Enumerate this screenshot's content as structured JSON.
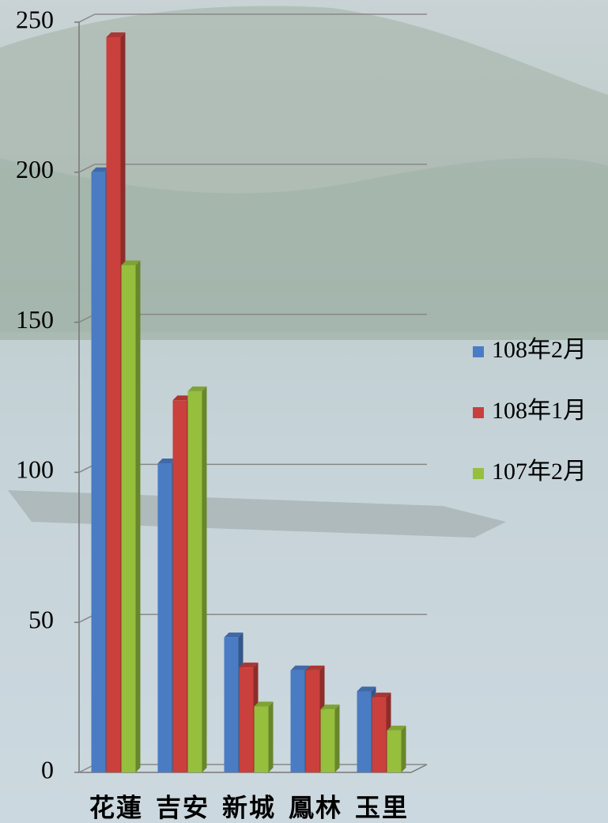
{
  "chart_data": {
    "type": "bar3d",
    "categories": [
      "花蓮",
      "吉安",
      "新城",
      "鳳林",
      "玉里"
    ],
    "series": [
      {
        "name": "108年2月",
        "color": "#4a7cc4",
        "values": [
          200,
          103,
          45,
          34,
          27
        ]
      },
      {
        "name": "108年1月",
        "color": "#c9403c",
        "values": [
          245,
          124,
          35,
          34,
          25
        ]
      },
      {
        "name": "107年2月",
        "color": "#95bf3d",
        "values": [
          169,
          127,
          22,
          21,
          14
        ]
      }
    ],
    "ylim": [
      0,
      250
    ],
    "yticks": [
      0,
      50,
      100,
      150,
      200,
      250
    ],
    "grid": true,
    "legend": "right"
  }
}
